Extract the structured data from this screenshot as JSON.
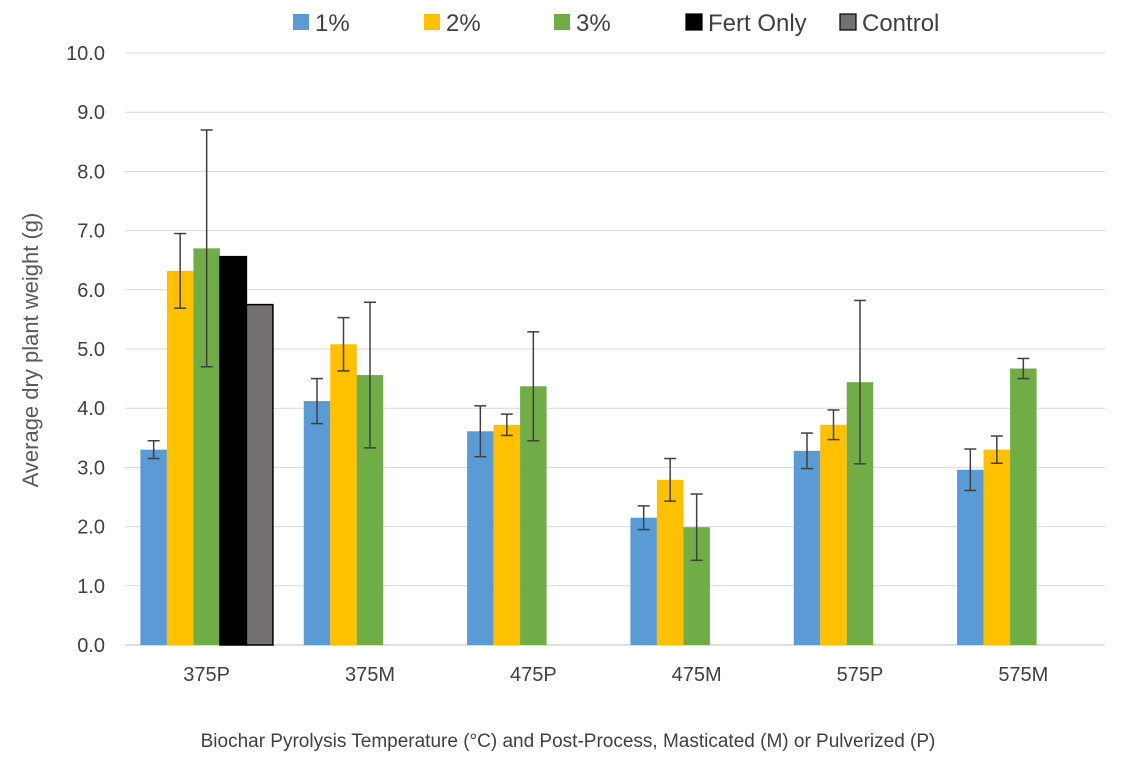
{
  "chart_data": {
    "type": "bar",
    "title": "",
    "xlabel": "Biochar Pyrolysis Temperature (°C) and Post-Process, Masticated (M) or Pulverized (P)",
    "ylabel": "Average dry plant weight (g)",
    "ylim": [
      0,
      10
    ],
    "yticks": [
      "0.0",
      "1.0",
      "2.0",
      "3.0",
      "4.0",
      "5.0",
      "6.0",
      "7.0",
      "8.0",
      "9.0",
      "10.0"
    ],
    "grid": true,
    "legend_position": "top",
    "categories": [
      "375P",
      "375M",
      "475P",
      "475M",
      "575P",
      "575M"
    ],
    "series": [
      {
        "name": "1%",
        "color": "#5B9BD5",
        "values": [
          3.3,
          4.12,
          3.61,
          2.15,
          3.28,
          2.96
        ],
        "errors": [
          0.15,
          0.38,
          0.43,
          0.2,
          0.3,
          0.35
        ]
      },
      {
        "name": "2%",
        "color": "#FFC000",
        "values": [
          6.32,
          5.08,
          3.72,
          2.79,
          3.72,
          3.3
        ],
        "errors": [
          0.63,
          0.45,
          0.18,
          0.36,
          0.25,
          0.23
        ]
      },
      {
        "name": "3%",
        "color": "#70AD47",
        "values": [
          6.7,
          4.56,
          4.37,
          1.99,
          4.44,
          4.67
        ],
        "errors": [
          2.0,
          1.23,
          0.92,
          0.56,
          1.38,
          0.17
        ]
      },
      {
        "name": "Fert Only",
        "color": "#000000",
        "values": [
          6.56,
          null,
          null,
          null,
          null,
          null
        ]
      },
      {
        "name": "Control",
        "color": "#767171",
        "values": [
          5.75,
          null,
          null,
          null,
          null,
          null
        ]
      }
    ]
  }
}
